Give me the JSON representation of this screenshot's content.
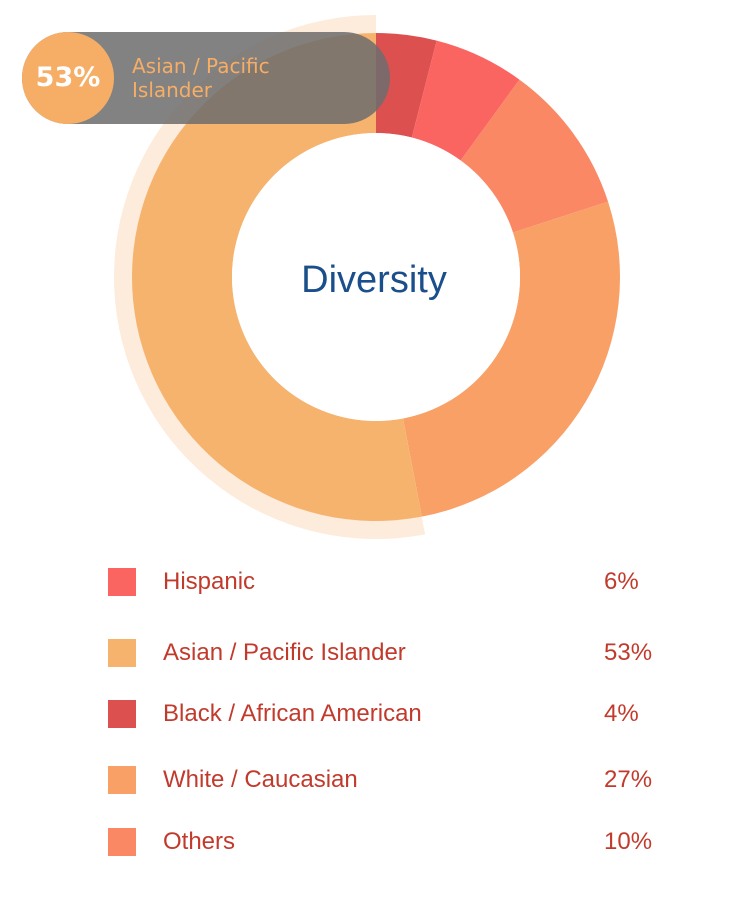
{
  "chart_data": {
    "type": "pie",
    "title": "Diversity",
    "categories": [
      "Hispanic",
      "Asian / Pacific Islander",
      "Black / African American",
      "White / Caucasian",
      "Others"
    ],
    "values": [
      6,
      53,
      4,
      27,
      10
    ],
    "value_labels": [
      "6%",
      "53%",
      "4%",
      "27%",
      "10%"
    ],
    "colors": [
      "#fb6561",
      "#f6b36e",
      "#dd5050",
      "#f9a067",
      "#fa8864"
    ],
    "donut": true,
    "highlighted": "Asian / Pacific Islander",
    "legend_position": "bottom"
  },
  "tooltip": {
    "value": "53%",
    "label": "Asian / Pacific Islander"
  }
}
